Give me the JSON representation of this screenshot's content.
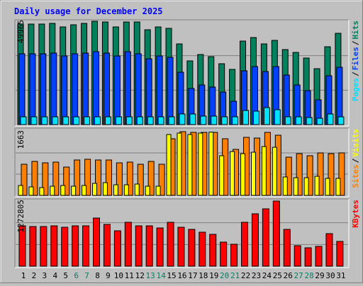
{
  "title": "Daily usage for December 2025",
  "legend_separator": "/",
  "chart_data": [
    {
      "type": "bar",
      "ylim": [
        0,
        49965
      ],
      "yticks": [
        49965
      ],
      "series": [
        {
          "name": "Pages",
          "color": "#00e0ff",
          "values": [
            3760,
            3760,
            3760,
            3760,
            3760,
            3760,
            3760,
            3760,
            3760,
            3760,
            3760,
            3760,
            3760,
            3760,
            3760,
            5130,
            5130,
            4100,
            4100,
            3760,
            3760,
            6840,
            6500,
            8210,
            7200,
            3760,
            3760,
            3420,
            3080,
            5130,
            3760
          ]
        },
        {
          "name": "Files",
          "color": "#0040ff",
          "values": [
            34220,
            34220,
            34220,
            34560,
            33190,
            34220,
            34560,
            35250,
            34560,
            33190,
            35250,
            34220,
            31820,
            33190,
            32510,
            25320,
            17450,
            19160,
            18140,
            15740,
            11290,
            26010,
            28060,
            25670,
            28060,
            23950,
            19160,
            16430,
            11980,
            23610,
            27720
          ]
        },
        {
          "name": "Hits",
          "color": "#00805c",
          "values": [
            48600,
            48600,
            48600,
            48940,
            47220,
            48250,
            48940,
            49965,
            49620,
            47220,
            49600,
            49620,
            45850,
            47220,
            46540,
            39010,
            30800,
            33880,
            32850,
            29430,
            26690,
            40380,
            42090,
            39010,
            40720,
            36270,
            34900,
            32170,
            27030,
            37640,
            44140
          ]
        }
      ]
    },
    {
      "type": "bar",
      "ylim": [
        0,
        1663
      ],
      "yticks": [
        1663
      ],
      "series": [
        {
          "name": "Sites",
          "color": "#ff8000",
          "values": [
            813,
            887,
            850,
            869,
            739,
            924,
            943,
            924,
            924,
            850,
            869,
            813,
            887,
            813,
            1478,
            1663,
            1645,
            1645,
            1645,
            1478,
            1201,
            1515,
            1497,
            1645,
            1571,
            998,
            1090,
            1035,
            1109,
            1090,
            1109
          ]
        },
        {
          "name": "Visits",
          "color": "#ffff00",
          "values": [
            259,
            222,
            203,
            240,
            259,
            240,
            259,
            314,
            333,
            277,
            277,
            296,
            240,
            240,
            1589,
            1626,
            1589,
            1626,
            1650,
            1035,
            1146,
            1090,
            1127,
            1275,
            1256,
            481,
            462,
            462,
            499,
            444,
            444
          ]
        }
      ]
    },
    {
      "type": "bar",
      "ylim": [
        0,
        1272805
      ],
      "yticks": [
        1272805
      ],
      "categories": [
        "1",
        "2",
        "3",
        "4",
        "5",
        "6",
        "7",
        "8",
        "9",
        "10",
        "11",
        "12",
        "13",
        "14",
        "15",
        "16",
        "17",
        "18",
        "19",
        "20",
        "21",
        "22",
        "23",
        "24",
        "25",
        "26",
        "27",
        "28",
        "29",
        "30",
        "31"
      ],
      "category_colors": [
        "#000000",
        "#000000",
        "#000000",
        "#000000",
        "#000000",
        "#008060",
        "#008060",
        "#000000",
        "#000000",
        "#000000",
        "#000000",
        "#000000",
        "#008060",
        "#008060",
        "#000000",
        "#000000",
        "#000000",
        "#000000",
        "#000000",
        "#008060",
        "#008060",
        "#000000",
        "#000000",
        "#000000",
        "#000000",
        "#000000",
        "#008060",
        "#008060",
        "#000000",
        "#000000",
        "#000000"
      ],
      "series": [
        {
          "name": "KBytes",
          "color": "#ff0000",
          "values": [
            788600,
            774800,
            774800,
            788600,
            760900,
            788600,
            788600,
            940800,
            816300,
            691700,
            857800,
            788600,
            788600,
            747100,
            857800,
            760900,
            719400,
            664100,
            622600,
            470400,
            428900,
            857800,
            1023800,
            1120600,
            1272805,
            719400,
            401200,
            359700,
            387400,
            636400,
            484200
          ]
        }
      ]
    }
  ]
}
